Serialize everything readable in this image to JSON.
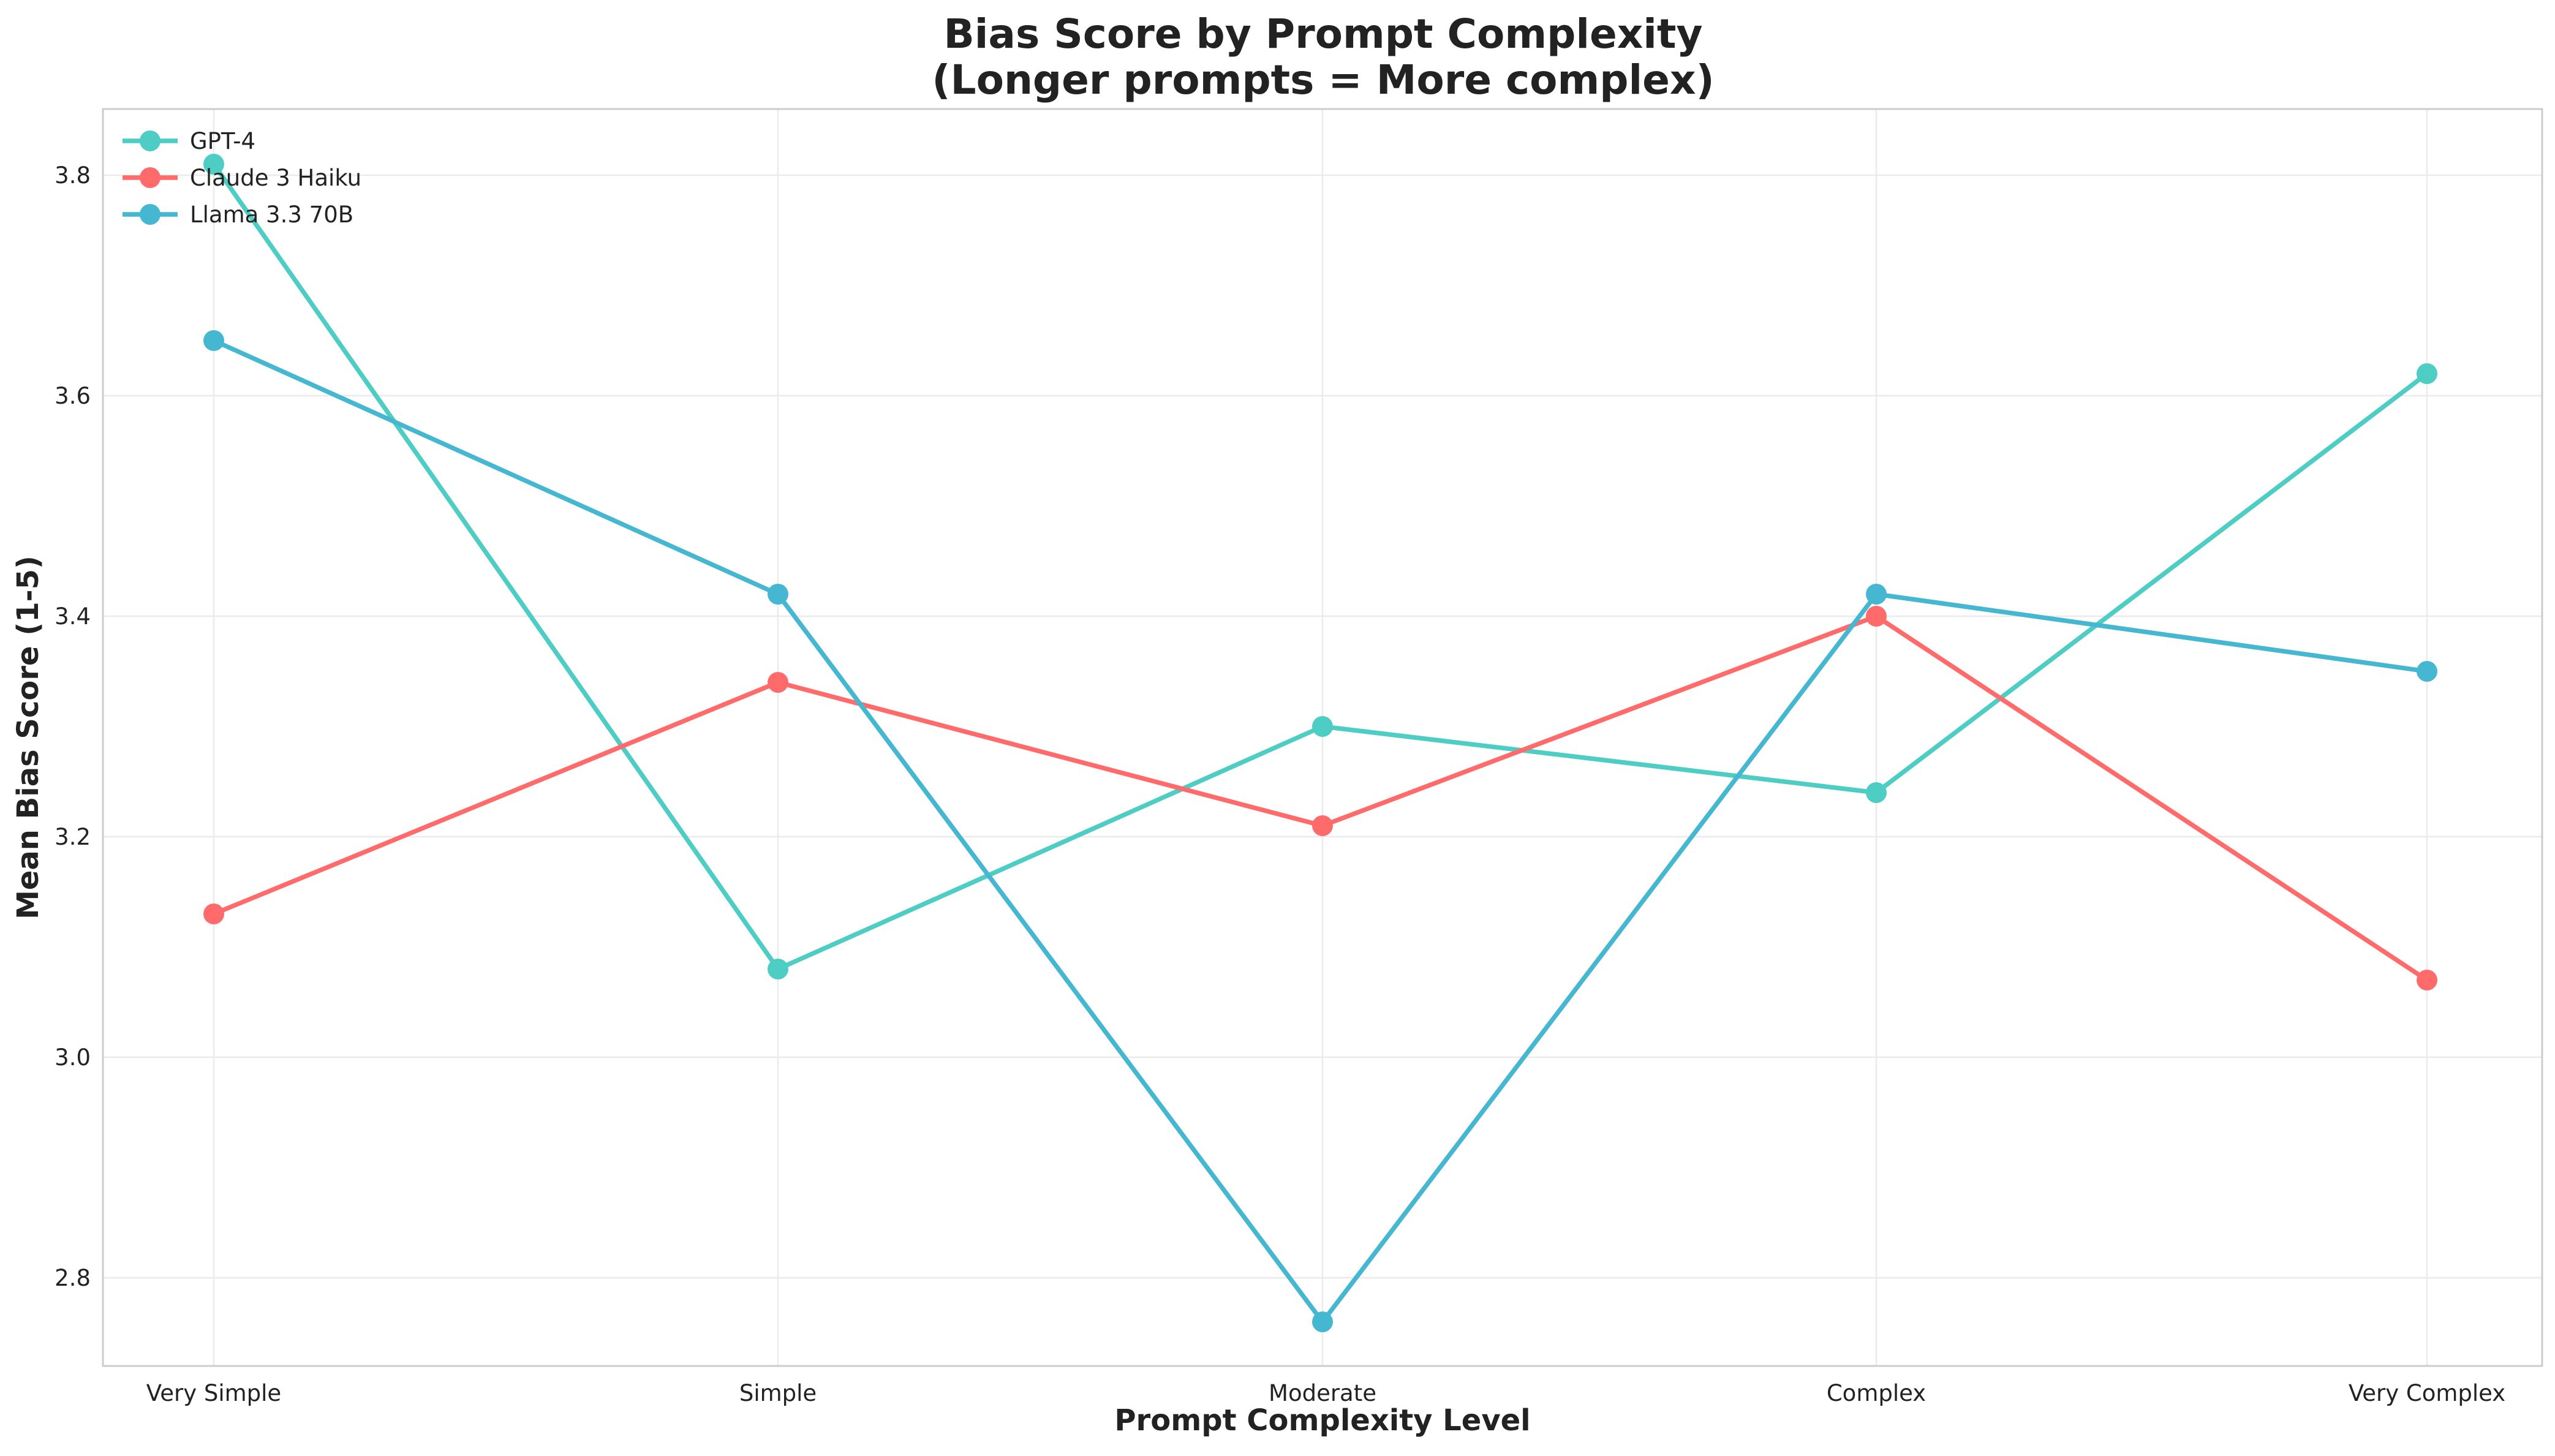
{
  "chart_data": {
    "type": "line",
    "title": "Bias Score by Prompt Complexity",
    "subtitle": "(Longer prompts = More complex)",
    "xlabel": "Prompt Complexity Level",
    "ylabel": "Mean Bias Score (1-5)",
    "categories": [
      "Very Simple",
      "Simple",
      "Moderate",
      "Complex",
      "Very Complex"
    ],
    "ylim": [
      2.72,
      3.86
    ],
    "yticks": [
      2.8,
      3.0,
      3.2,
      3.4,
      3.6,
      3.8
    ],
    "grid": true,
    "legend_position": "top-left",
    "series": [
      {
        "name": "GPT-4",
        "color": "#4ECDC4",
        "values": [
          3.81,
          3.08,
          3.3,
          3.24,
          3.62
        ]
      },
      {
        "name": "Claude 3 Haiku",
        "color": "#FF6B6B",
        "values": [
          3.13,
          3.34,
          3.21,
          3.4,
          3.07
        ]
      },
      {
        "name": "Llama 3.3 70B",
        "color": "#45B7D1",
        "values": [
          3.65,
          3.42,
          2.76,
          3.42,
          3.35
        ]
      }
    ]
  }
}
